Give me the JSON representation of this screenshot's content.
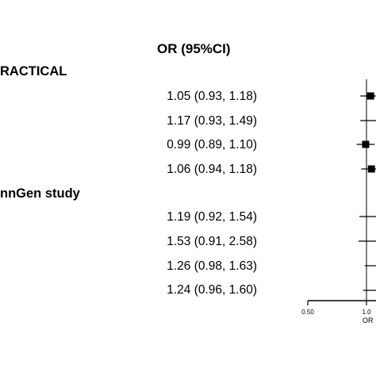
{
  "chart_data": {
    "type": "forest",
    "column_header": "OR (95%CI)",
    "groups": [
      {
        "label": "RACTICAL",
        "rows": [
          {
            "text": "1.05 (0.93, 1.18)",
            "or": 1.05,
            "lo": 0.93,
            "hi": 1.18
          },
          {
            "text": "1.17 (0.93, 1.49)",
            "or": 1.17,
            "lo": 0.93,
            "hi": 1.49
          },
          {
            "text": "0.99 (0.89, 1.10)",
            "or": 0.99,
            "lo": 0.89,
            "hi": 1.1
          },
          {
            "text": "1.06 (0.94, 1.18)",
            "or": 1.06,
            "lo": 0.94,
            "hi": 1.18
          }
        ]
      },
      {
        "label": "nnGen study",
        "rows": [
          {
            "text": "1.19 (0.92, 1.54)",
            "or": 1.19,
            "lo": 0.92,
            "hi": 1.54
          },
          {
            "text": "1.53 (0.91, 2.58)",
            "or": 1.53,
            "lo": 0.91,
            "hi": 2.58
          },
          {
            "text": "1.26 (0.98, 1.63)",
            "or": 1.26,
            "lo": 0.98,
            "hi": 1.63
          },
          {
            "text": "1.24 (0.96, 1.60)",
            "or": 1.24,
            "lo": 0.96,
            "hi": 1.6
          }
        ]
      }
    ],
    "x_axis": {
      "scale": "log",
      "ticks": [
        {
          "value": 0.5,
          "label": "0.50"
        },
        {
          "value": 1.0,
          "label": "1.0"
        }
      ],
      "label": "OR",
      "reference_line": 1.0
    }
  }
}
